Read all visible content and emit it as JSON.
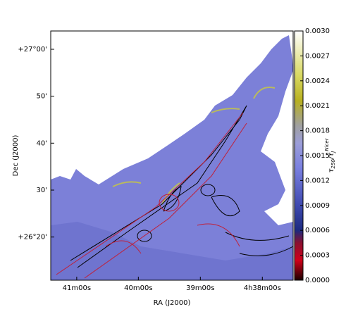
{
  "chart_data": {
    "type": "image",
    "xlabel": "RA (J2000)",
    "ylabel": "Dec (J2000)",
    "xlim": [
      4.6903,
      4.625
    ],
    "xticks": [
      {
        "value": 4.6833,
        "label": "41m00s"
      },
      {
        "value": 4.6667,
        "label": "40m00s"
      },
      {
        "value": 4.65,
        "label": "39m00s"
      },
      {
        "value": 4.6333,
        "label": "4h38m00s"
      }
    ],
    "ylim": [
      26.18,
      27.065
    ],
    "yticks": [
      {
        "value": 27.0,
        "label": "+27°00'"
      },
      {
        "value": 26.8333,
        "label": "50'"
      },
      {
        "value": 26.6667,
        "label": "40'"
      },
      {
        "value": 26.5,
        "label": "30'"
      },
      {
        "value": 26.3333,
        "label": "+26°20'"
      }
    ],
    "colorbar": {
      "lim": [
        0,
        0.003
      ],
      "ticks": [
        {
          "value": 0,
          "label": "0.0000"
        },
        {
          "value": 0.0003,
          "label": "0.0003"
        },
        {
          "value": 0.0006,
          "label": "0.0006"
        },
        {
          "value": 0.0009,
          "label": "0.0009"
        },
        {
          "value": 0.0012,
          "label": "0.0012"
        },
        {
          "value": 0.0015,
          "label": "0.0015"
        },
        {
          "value": 0.0018,
          "label": "0.0018"
        },
        {
          "value": 0.0021,
          "label": "0.0021"
        },
        {
          "value": 0.0024,
          "label": "0.0024"
        },
        {
          "value": 0.0027,
          "label": "0.0027"
        },
        {
          "value": 0.003,
          "label": "0.0030"
        }
      ],
      "label": [
        "τ",
        "250",
        "/τ",
        "J",
        "Nicer"
      ]
    }
  }
}
